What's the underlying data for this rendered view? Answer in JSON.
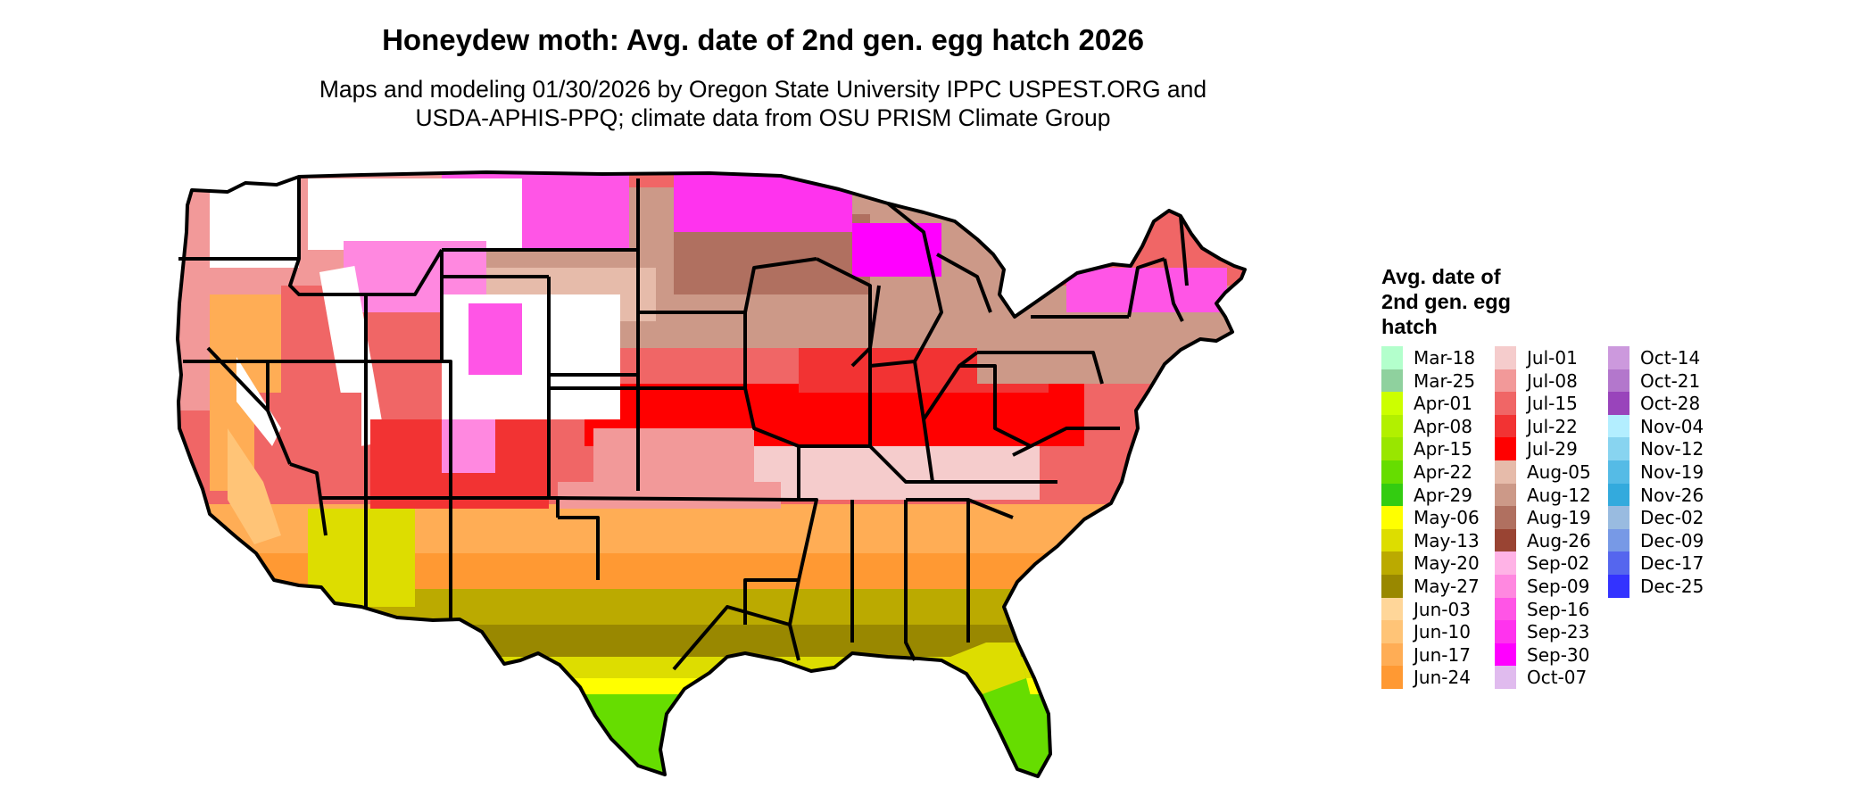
{
  "header": {
    "title": "Honeydew moth: Avg. date of 2nd gen. egg hatch 2026",
    "subtitle_line1": "Maps and modeling 01/30/2026 by Oregon State University IPPC USPEST.ORG and",
    "subtitle_line2": "USDA-APHIS-PPQ; climate data from OSU PRISM Climate Group"
  },
  "legend": {
    "title_line1": "Avg. date of",
    "title_line2": "2nd gen. egg",
    "title_line3": "hatch",
    "columns": [
      [
        {
          "label": "Mar-18",
          "color": "#b3ffcc"
        },
        {
          "label": "Mar-25",
          "color": "#8fd19e"
        },
        {
          "label": "Apr-01",
          "color": "#ccff00"
        },
        {
          "label": "Apr-08",
          "color": "#b2f000"
        },
        {
          "label": "Apr-15",
          "color": "#99e600"
        },
        {
          "label": "Apr-22",
          "color": "#66dd00"
        },
        {
          "label": "Apr-29",
          "color": "#33cc11"
        },
        {
          "label": "May-06",
          "color": "#ffff00"
        },
        {
          "label": "May-13",
          "color": "#dddd00"
        },
        {
          "label": "May-20",
          "color": "#bbaa00"
        },
        {
          "label": "May-27",
          "color": "#998800"
        },
        {
          "label": "Jun-03",
          "color": "#ffd699"
        },
        {
          "label": "Jun-10",
          "color": "#ffc477"
        },
        {
          "label": "Jun-17",
          "color": "#ffad55"
        },
        {
          "label": "Jun-24",
          "color": "#ff9933"
        }
      ],
      [
        {
          "label": "Jul-01",
          "color": "#f5cccc"
        },
        {
          "label": "Jul-08",
          "color": "#f29999"
        },
        {
          "label": "Jul-15",
          "color": "#f06666"
        },
        {
          "label": "Jul-22",
          "color": "#f23333"
        },
        {
          "label": "Jul-29",
          "color": "#ff0000"
        },
        {
          "label": "Aug-05",
          "color": "#e6bbaa"
        },
        {
          "label": "Aug-12",
          "color": "#cc9988"
        },
        {
          "label": "Aug-19",
          "color": "#b07060"
        },
        {
          "label": "Aug-26",
          "color": "#994433"
        },
        {
          "label": "Sep-02",
          "color": "#ffb3e6"
        },
        {
          "label": "Sep-09",
          "color": "#ff88e0"
        },
        {
          "label": "Sep-16",
          "color": "#ff55e6"
        },
        {
          "label": "Sep-23",
          "color": "#ff33ee"
        },
        {
          "label": "Sep-30",
          "color": "#ff00ff"
        },
        {
          "label": "Oct-07",
          "color": "#e0bbee"
        }
      ],
      [
        {
          "label": "Oct-14",
          "color": "#cc99dd"
        },
        {
          "label": "Oct-21",
          "color": "#b377cc"
        },
        {
          "label": "Oct-28",
          "color": "#9944bb"
        },
        {
          "label": "Nov-04",
          "color": "#b3eeff"
        },
        {
          "label": "Nov-12",
          "color": "#88d4f0"
        },
        {
          "label": "Nov-19",
          "color": "#55bbe6"
        },
        {
          "label": "Nov-26",
          "color": "#33aadd"
        },
        {
          "label": "Dec-02",
          "color": "#99bbe0"
        },
        {
          "label": "Dec-09",
          "color": "#7799e6"
        },
        {
          "label": "Dec-17",
          "color": "#5566ee"
        },
        {
          "label": "Dec-25",
          "color": "#3333ff"
        }
      ]
    ]
  }
}
